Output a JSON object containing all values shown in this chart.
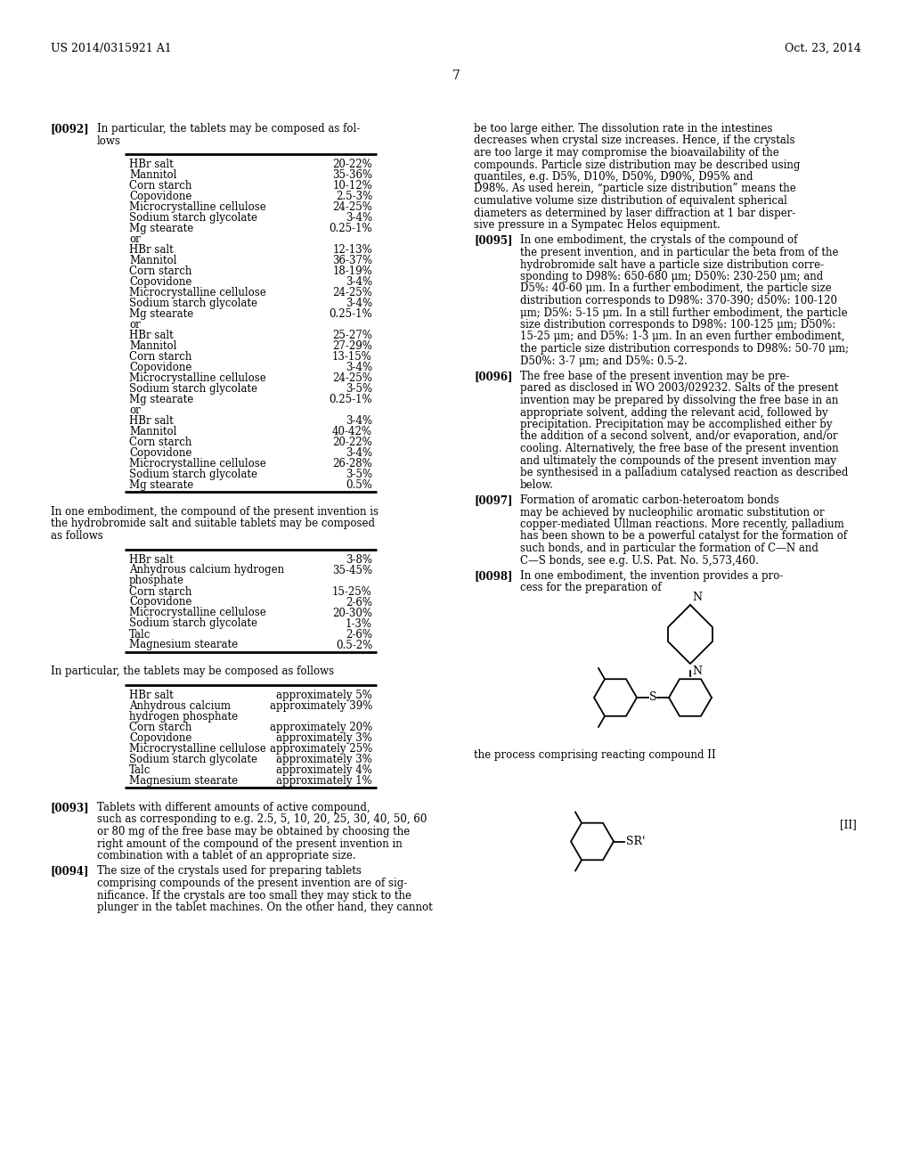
{
  "header_left": "US 2014/0315921 A1",
  "header_right": "Oct. 23, 2014",
  "page_number": "7",
  "bg_color": "#ffffff",
  "table1_rows": [
    [
      "HBr salt",
      "20-22%"
    ],
    [
      "Mannitol",
      "35-36%"
    ],
    [
      "Corn starch",
      "10-12%"
    ],
    [
      "Copovidone",
      "2.5-3%"
    ],
    [
      "Microcrystalline cellulose",
      "24-25%"
    ],
    [
      "Sodium starch glycolate",
      "3-4%"
    ],
    [
      "Mg stearate",
      "0.25-1%"
    ],
    [
      "or",
      ""
    ],
    [
      "HBr salt",
      "12-13%"
    ],
    [
      "Mannitol",
      "36-37%"
    ],
    [
      "Corn starch",
      "18-19%"
    ],
    [
      "Copovidone",
      "3-4%"
    ],
    [
      "Microcrystalline cellulose",
      "24-25%"
    ],
    [
      "Sodium starch glycolate",
      "3-4%"
    ],
    [
      "Mg stearate",
      "0.25-1%"
    ],
    [
      "or",
      ""
    ],
    [
      "HBr salt",
      "25-27%"
    ],
    [
      "Mannitol",
      "27-29%"
    ],
    [
      "Corn starch",
      "13-15%"
    ],
    [
      "Copovidone",
      "3-4%"
    ],
    [
      "Microcrystalline cellulose",
      "24-25%"
    ],
    [
      "Sodium starch glycolate",
      "3-5%"
    ],
    [
      "Mg stearate",
      "0.25-1%"
    ],
    [
      "or",
      ""
    ],
    [
      "HBr salt",
      "3-4%"
    ],
    [
      "Mannitol",
      "40-42%"
    ],
    [
      "Corn starch",
      "20-22%"
    ],
    [
      "Copovidone",
      "3-4%"
    ],
    [
      "Microcrystalline cellulose",
      "26-28%"
    ],
    [
      "Sodium starch glycolate",
      "3-5%"
    ],
    [
      "Mg stearate",
      "0.5%"
    ]
  ],
  "table2_rows": [
    [
      "HBr salt",
      "3-8%"
    ],
    [
      "Anhydrous calcium hydrogen",
      "35-45%"
    ],
    [
      "phosphate",
      ""
    ],
    [
      "Corn starch",
      "15-25%"
    ],
    [
      "Copovidone",
      "2-6%"
    ],
    [
      "Microcrystalline cellulose",
      "20-30%"
    ],
    [
      "Sodium starch glycolate",
      "1-3%"
    ],
    [
      "Talc",
      "2-6%"
    ],
    [
      "Magnesium stearate",
      "0.5-2%"
    ]
  ],
  "table3_rows": [
    [
      "HBr salt",
      "approximately 5%"
    ],
    [
      "Anhydrous calcium",
      "approximately 39%"
    ],
    [
      "hydrogen phosphate",
      ""
    ],
    [
      "Corn starch",
      "approximately 20%"
    ],
    [
      "Copovidone",
      "approximately 3%"
    ],
    [
      "Microcrystalline cellulose",
      "approximately 25%"
    ],
    [
      "Sodium starch glycolate",
      "approximately 3%"
    ],
    [
      "Talc",
      "approximately 4%"
    ],
    [
      "Magnesium stearate",
      "approximately 1%"
    ]
  ],
  "right_p1_lines": [
    "be too large either. The dissolution rate in the intestines",
    "decreases when crystal size increases. Hence, if the crystals",
    "are too large it may compromise the bioavailability of the",
    "compounds. Particle size distribution may be described using",
    "quantiles, e.g. D5%, D10%, D50%, D90%, D95% and",
    "D98%. As used herein, “particle size distribution” means the",
    "cumulative volume size distribution of equivalent spherical",
    "diameters as determined by laser diffraction at 1 bar disper-",
    "sive pressure in a Sympatec Helos equipment."
  ],
  "p95_lines": [
    "In one embodiment, the crystals of the compound of",
    "the present invention, and in particular the beta from of the",
    "hydrobromide salt have a particle size distribution corre-",
    "sponding to D98%: 650-680 μm; D50%: 230-250 μm; and",
    "D5%: 40-60 μm. In a further embodiment, the particle size",
    "distribution corresponds to D98%: 370-390; d50%: 100-120",
    "μm; D5%: 5-15 μm. In a still further embodiment, the particle",
    "size distribution corresponds to D98%: 100-125 μm; D50%:",
    "15-25 μm; and D5%: 1-3 μm. In an even further embodiment,",
    "the particle size distribution corresponds to D98%: 50-70 μm;",
    "D50%: 3-7 μm; and D5%: 0.5-2."
  ],
  "p96_lines": [
    "The free base of the present invention may be pre-",
    "pared as disclosed in WO 2003/029232. Salts of the present",
    "invention may be prepared by dissolving the free base in an",
    "appropriate solvent, adding the relevant acid, followed by",
    "precipitation. Precipitation may be accomplished either by",
    "the addition of a second solvent, and/or evaporation, and/or",
    "cooling. Alternatively, the free base of the present invention",
    "and ultimately the compounds of the present invention may",
    "be synthesised in a palladium catalysed reaction as described",
    "below."
  ],
  "p97_lines": [
    "Formation of aromatic carbon-heteroatom bonds",
    "may be achieved by nucleophilic aromatic substitution or",
    "copper-mediated Ullman reactions. More recently, palladium",
    "has been shown to be a powerful catalyst for the formation of",
    "such bonds, and in particular the formation of C—N and",
    "C—S bonds, see e.g. U.S. Pat. No. 5,573,460."
  ],
  "p98_lines": [
    "In one embodiment, the invention provides a pro-",
    "cess for the preparation of"
  ],
  "p93_lines": [
    "Tablets with different amounts of active compound,",
    "such as corresponding to e.g. 2.5, 5, 10, 20, 25, 30, 40, 50, 60",
    "or 80 mg of the free base may be obtained by choosing the",
    "right amount of the compound of the present invention in",
    "combination with a tablet of an appropriate size."
  ],
  "p94_lines": [
    "The size of the crystals used for preparing tablets",
    "comprising compounds of the present invention are of sig-",
    "nificance. If the crystals are too small they may stick to the",
    "plunger in the tablet machines. On the other hand, they cannot"
  ]
}
